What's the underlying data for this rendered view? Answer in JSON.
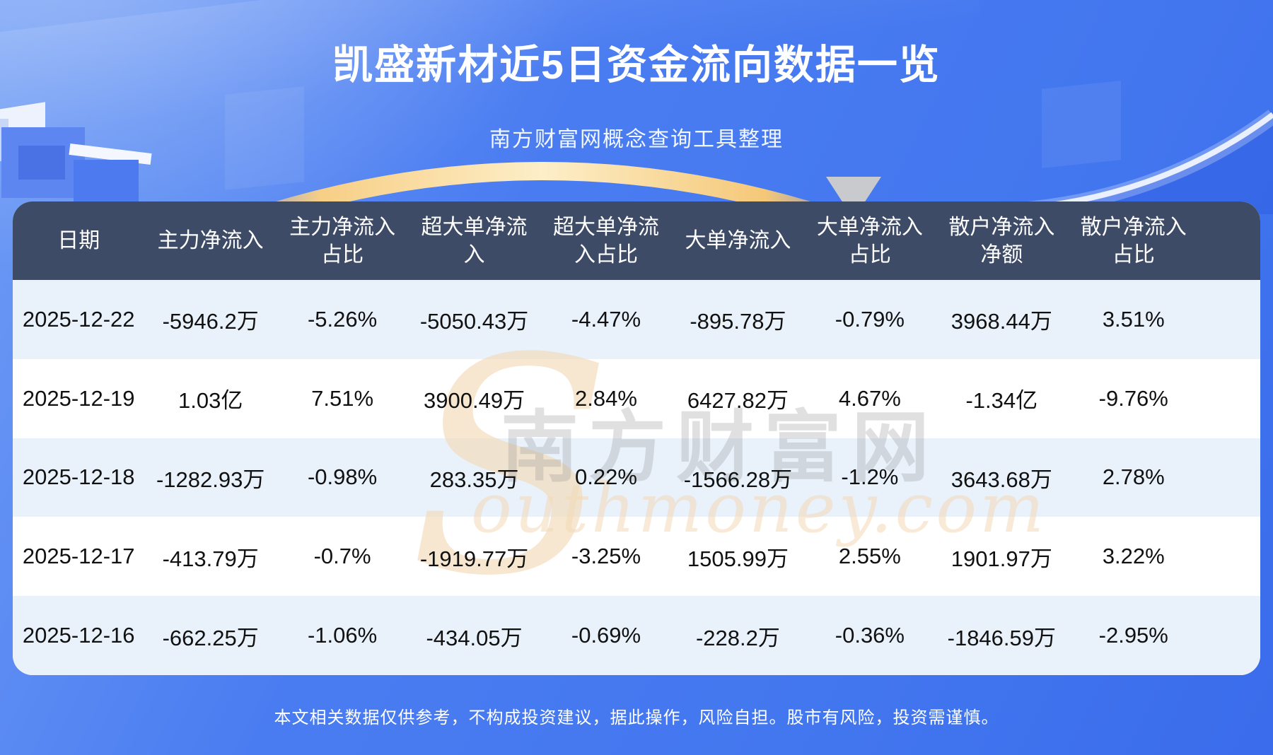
{
  "page": {
    "title": "凯盛新材近5日资金流向数据一览",
    "subtitle": "南方财富网概念查询工具整理"
  },
  "chart_data": {
    "type": "table",
    "title": "凯盛新材近5日资金流向数据一览",
    "columns": [
      "日期",
      "主力净流入",
      "主力净流入占比",
      "超大单净流入",
      "超大单净流入占比",
      "大单净流入",
      "大单净流入占比",
      "散户净流入净额",
      "散户净流入占比"
    ],
    "rows": [
      [
        "2025-12-22",
        "-5946.2万",
        "-5.26%",
        "-5050.43万",
        "-4.47%",
        "-895.78万",
        "-0.79%",
        "3968.44万",
        "3.51%"
      ],
      [
        "2025-12-19",
        "1.03亿",
        "7.51%",
        "3900.49万",
        "2.84%",
        "6427.82万",
        "4.67%",
        "-1.34亿",
        "-9.76%"
      ],
      [
        "2025-12-18",
        "-1282.93万",
        "-0.98%",
        "283.35万",
        "0.22%",
        "-1566.28万",
        "-1.2%",
        "3643.68万",
        "2.78%"
      ],
      [
        "2025-12-17",
        "-413.79万",
        "-0.7%",
        "-1919.77万",
        "-3.25%",
        "1505.99万",
        "2.55%",
        "1901.97万",
        "3.22%"
      ],
      [
        "2025-12-16",
        "-662.25万",
        "-1.06%",
        "-434.05万",
        "-0.69%",
        "-228.2万",
        "-0.36%",
        "-1846.59万",
        "-2.95%"
      ]
    ]
  },
  "table": {
    "header_lines": [
      "日期",
      "主力净流入",
      "主力净流入\n占比",
      "超大单净流\n入",
      "超大单净流\n入占比",
      "大单净流入",
      "大单净流入\n占比",
      "散户净流入\n净额",
      "散户净流入\n占比"
    ]
  },
  "watermark": {
    "initial": "S",
    "brand_cn": "南方财富网",
    "script": "outhmoney.com"
  },
  "footer": {
    "disclaimer": "本文相关数据仅供参考，不构成投资建议，据此操作，风险自担。股市有风险，投资需谨慎。"
  },
  "colors": {
    "bg-main": "#4377ef",
    "bg-light": "#6f9cf5",
    "bg-deep": "#3a6ceb",
    "header-bg": "#3e4b66",
    "row-light": "#e9f1fb",
    "row-white": "#ffffff",
    "cell-text": "#111111",
    "title-text": "#ffffff",
    "gold": "#f7cf86",
    "watermark-tan": "#f3d9b5"
  }
}
